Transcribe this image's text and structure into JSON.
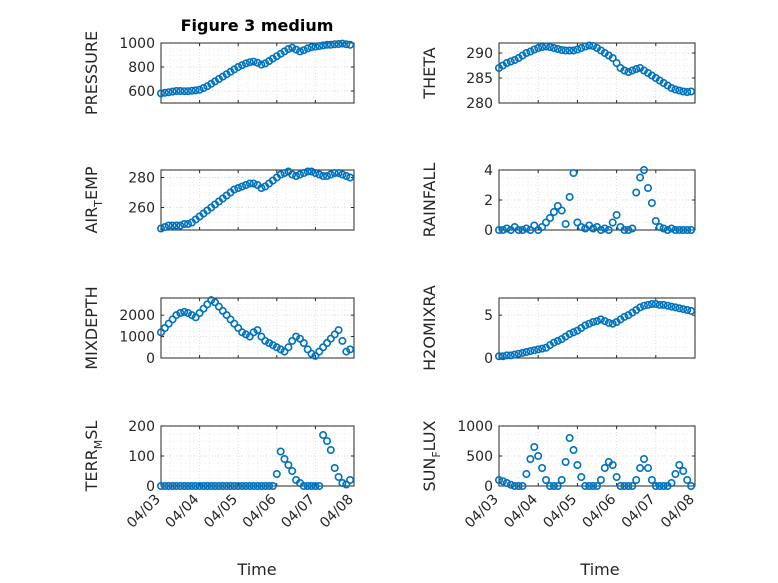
{
  "chart_data": [
    {
      "type": "scatter",
      "title": "Figure 3 medium",
      "ylabel": "PRESSURE",
      "ylabel_sub": null,
      "xlim": [
        0,
        5
      ],
      "ylim": [
        500,
        1000
      ],
      "yticks": [
        600,
        800,
        1000
      ],
      "x": [
        0,
        0.1,
        0.2,
        0.3,
        0.4,
        0.5,
        0.6,
        0.7,
        0.8,
        0.9,
        1.0,
        1.1,
        1.2,
        1.3,
        1.4,
        1.5,
        1.6,
        1.7,
        1.8,
        1.9,
        2.0,
        2.1,
        2.2,
        2.3,
        2.4,
        2.5,
        2.6,
        2.7,
        2.8,
        2.9,
        3.0,
        3.1,
        3.2,
        3.3,
        3.4,
        3.5,
        3.6,
        3.7,
        3.8,
        3.9,
        4.0,
        4.1,
        4.2,
        4.3,
        4.4,
        4.5,
        4.6,
        4.7,
        4.8,
        4.9
      ],
      "y": [
        580,
        585,
        590,
        595,
        600,
        600,
        598,
        598,
        602,
        605,
        610,
        625,
        640,
        660,
        680,
        700,
        720,
        740,
        760,
        780,
        800,
        815,
        830,
        840,
        845,
        835,
        820,
        830,
        850,
        870,
        890,
        910,
        930,
        950,
        960,
        945,
        930,
        940,
        955,
        965,
        970,
        975,
        980,
        985,
        985,
        990,
        992,
        995,
        990,
        985
      ]
    },
    {
      "type": "scatter",
      "title": "",
      "ylabel": "THETA",
      "ylabel_sub": null,
      "xlim": [
        0,
        5
      ],
      "ylim": [
        280,
        292
      ],
      "yticks": [
        280,
        285,
        290
      ],
      "x": [
        0,
        0.1,
        0.2,
        0.3,
        0.4,
        0.5,
        0.6,
        0.7,
        0.8,
        0.9,
        1.0,
        1.1,
        1.2,
        1.3,
        1.4,
        1.5,
        1.6,
        1.7,
        1.8,
        1.9,
        2.0,
        2.1,
        2.2,
        2.3,
        2.4,
        2.5,
        2.6,
        2.7,
        2.8,
        2.9,
        3.0,
        3.1,
        3.2,
        3.3,
        3.4,
        3.5,
        3.6,
        3.7,
        3.8,
        3.9,
        4.0,
        4.1,
        4.2,
        4.3,
        4.4,
        4.5,
        4.6,
        4.7,
        4.8,
        4.9
      ],
      "y": [
        287,
        287.5,
        288,
        288.3,
        288.6,
        289,
        289.5,
        290,
        290.3,
        290.7,
        291,
        291.2,
        291.3,
        291.2,
        291,
        290.8,
        290.6,
        290.5,
        290.5,
        290.5,
        290.7,
        291,
        291.3,
        291.5,
        291.4,
        291,
        290.5,
        290,
        289.5,
        289,
        288,
        287,
        286.5,
        286.2,
        286.5,
        286.8,
        287,
        286.5,
        286,
        285.5,
        285,
        284.5,
        284,
        283.5,
        283,
        282.7,
        282.5,
        282.3,
        282.2,
        282.3
      ]
    },
    {
      "type": "scatter",
      "title": "",
      "ylabel": "AIR",
      "ylabel_sub": "T",
      "ylabel_rest": "EMP",
      "xlim": [
        0,
        5
      ],
      "ylim": [
        245,
        285
      ],
      "yticks": [
        260,
        280
      ],
      "x": [
        0,
        0.1,
        0.2,
        0.3,
        0.4,
        0.5,
        0.6,
        0.7,
        0.8,
        0.9,
        1.0,
        1.1,
        1.2,
        1.3,
        1.4,
        1.5,
        1.6,
        1.7,
        1.8,
        1.9,
        2.0,
        2.1,
        2.2,
        2.3,
        2.4,
        2.5,
        2.6,
        2.7,
        2.8,
        2.9,
        3.0,
        3.1,
        3.2,
        3.3,
        3.4,
        3.5,
        3.6,
        3.7,
        3.8,
        3.9,
        4.0,
        4.1,
        4.2,
        4.3,
        4.4,
        4.5,
        4.6,
        4.7,
        4.8,
        4.9
      ],
      "y": [
        246,
        247,
        248,
        248,
        248,
        248,
        249,
        249,
        250,
        252,
        254,
        256,
        258,
        260,
        262,
        264,
        266,
        268,
        270,
        272,
        273,
        274,
        275,
        276,
        276,
        275,
        273,
        274,
        276,
        278,
        280,
        282,
        283,
        284,
        282,
        281,
        282,
        283,
        284,
        284,
        283,
        282,
        281,
        281,
        282,
        283,
        283,
        282,
        281,
        280
      ]
    },
    {
      "type": "scatter",
      "title": "",
      "ylabel": "RAINFALL",
      "ylabel_sub": null,
      "xlim": [
        0,
        5
      ],
      "ylim": [
        0,
        4
      ],
      "yticks": [
        0,
        2,
        4
      ],
      "x": [
        0,
        0.1,
        0.2,
        0.3,
        0.4,
        0.5,
        0.6,
        0.7,
        0.8,
        0.9,
        1.0,
        1.1,
        1.2,
        1.3,
        1.4,
        1.5,
        1.6,
        1.7,
        1.8,
        1.9,
        2.0,
        2.1,
        2.2,
        2.3,
        2.4,
        2.5,
        2.6,
        2.7,
        2.8,
        2.9,
        3.0,
        3.1,
        3.2,
        3.3,
        3.4,
        3.5,
        3.6,
        3.7,
        3.8,
        3.9,
        4.0,
        4.1,
        4.2,
        4.3,
        4.4,
        4.5,
        4.6,
        4.7,
        4.8,
        4.9
      ],
      "y": [
        0,
        0,
        0.1,
        0,
        0.2,
        0,
        0,
        0.1,
        0,
        0.3,
        0,
        0.2,
        0.5,
        0.8,
        1.2,
        1.6,
        1.3,
        0.4,
        2.2,
        3.8,
        0.5,
        0.2,
        0.1,
        0.3,
        0.1,
        0.2,
        0,
        0.1,
        0,
        0.5,
        1.0,
        0.2,
        0,
        0,
        0.1,
        2.5,
        3.5,
        4.0,
        2.8,
        1.8,
        0.6,
        0.2,
        0.1,
        0,
        0.1,
        0,
        0,
        0,
        0,
        0
      ]
    },
    {
      "type": "scatter",
      "title": "",
      "ylabel": "MIXDEPTH",
      "ylabel_sub": null,
      "xlim": [
        0,
        5
      ],
      "ylim": [
        0,
        2800
      ],
      "yticks": [
        0,
        1000,
        2000
      ],
      "x": [
        0,
        0.1,
        0.2,
        0.3,
        0.4,
        0.5,
        0.6,
        0.7,
        0.8,
        0.9,
        1.0,
        1.1,
        1.2,
        1.3,
        1.4,
        1.5,
        1.6,
        1.7,
        1.8,
        1.9,
        2.0,
        2.1,
        2.2,
        2.3,
        2.4,
        2.5,
        2.6,
        2.7,
        2.8,
        2.9,
        3.0,
        3.1,
        3.2,
        3.3,
        3.4,
        3.5,
        3.6,
        3.7,
        3.8,
        3.9,
        4.0,
        4.1,
        4.2,
        4.3,
        4.4,
        4.5,
        4.6,
        4.7,
        4.8,
        4.9
      ],
      "y": [
        1200,
        1400,
        1600,
        1800,
        2000,
        2100,
        2150,
        2100,
        2000,
        1900,
        2100,
        2300,
        2500,
        2700,
        2600,
        2400,
        2200,
        2000,
        1800,
        1600,
        1400,
        1200,
        1100,
        1000,
        1200,
        1300,
        1000,
        800,
        700,
        600,
        500,
        400,
        300,
        500,
        800,
        1000,
        900,
        700,
        400,
        200,
        100,
        300,
        500,
        700,
        900,
        1100,
        1300,
        800,
        300,
        400
      ]
    },
    {
      "type": "scatter",
      "title": "",
      "ylabel": "H2OMIXRA",
      "ylabel_sub": null,
      "xlim": [
        0,
        5
      ],
      "ylim": [
        0,
        7
      ],
      "yticks": [
        0,
        5
      ],
      "x": [
        0,
        0.1,
        0.2,
        0.3,
        0.4,
        0.5,
        0.6,
        0.7,
        0.8,
        0.9,
        1.0,
        1.1,
        1.2,
        1.3,
        1.4,
        1.5,
        1.6,
        1.7,
        1.8,
        1.9,
        2.0,
        2.1,
        2.2,
        2.3,
        2.4,
        2.5,
        2.6,
        2.7,
        2.8,
        2.9,
        3.0,
        3.1,
        3.2,
        3.3,
        3.4,
        3.5,
        3.6,
        3.7,
        3.8,
        3.9,
        4.0,
        4.1,
        4.2,
        4.3,
        4.4,
        4.5,
        4.6,
        4.7,
        4.8,
        4.9
      ],
      "y": [
        0.2,
        0.2,
        0.3,
        0.3,
        0.4,
        0.5,
        0.6,
        0.7,
        0.8,
        0.9,
        1.0,
        1.1,
        1.2,
        1.5,
        1.8,
        2.0,
        2.2,
        2.5,
        2.8,
        3.0,
        3.2,
        3.5,
        3.8,
        4.0,
        4.2,
        4.3,
        4.5,
        4.3,
        4.1,
        4.0,
        4.2,
        4.5,
        4.8,
        5.0,
        5.3,
        5.6,
        5.9,
        6.1,
        6.2,
        6.3,
        6.3,
        6.2,
        6.2,
        6.1,
        6.0,
        5.9,
        5.8,
        5.7,
        5.6,
        5.5
      ]
    },
    {
      "type": "scatter",
      "title": "",
      "ylabel": "TERR",
      "ylabel_sub": "M",
      "ylabel_rest": "SL",
      "xlim": [
        0,
        5
      ],
      "ylim": [
        0,
        200
      ],
      "yticks": [
        0,
        100,
        200
      ],
      "x": [
        0,
        0.1,
        0.2,
        0.3,
        0.4,
        0.5,
        0.6,
        0.7,
        0.8,
        0.9,
        1.0,
        1.1,
        1.2,
        1.3,
        1.4,
        1.5,
        1.6,
        1.7,
        1.8,
        1.9,
        2.0,
        2.1,
        2.2,
        2.3,
        2.4,
        2.5,
        2.6,
        2.7,
        2.8,
        2.9,
        3.0,
        3.1,
        3.2,
        3.3,
        3.4,
        3.5,
        3.6,
        3.7,
        3.8,
        3.9,
        4.0,
        4.1,
        4.2,
        4.3,
        4.4,
        4.5,
        4.6,
        4.7,
        4.8,
        4.9
      ],
      "y": [
        0,
        0,
        0,
        0,
        0,
        0,
        0,
        0,
        0,
        0,
        0,
        0,
        0,
        0,
        0,
        0,
        0,
        0,
        0,
        0,
        0,
        0,
        0,
        0,
        0,
        0,
        0,
        0,
        0,
        0,
        40,
        115,
        90,
        70,
        50,
        20,
        10,
        0,
        0,
        0,
        0,
        0,
        170,
        150,
        120,
        60,
        30,
        10,
        5,
        20
      ]
    },
    {
      "type": "scatter",
      "title": "",
      "ylabel": "SUN",
      "ylabel_sub": "F",
      "ylabel_rest": "LUX",
      "xlim": [
        0,
        5
      ],
      "ylim": [
        0,
        1000
      ],
      "yticks": [
        0,
        500,
        1000
      ],
      "x": [
        0,
        0.1,
        0.2,
        0.3,
        0.4,
        0.5,
        0.6,
        0.7,
        0.8,
        0.9,
        1.0,
        1.1,
        1.2,
        1.3,
        1.4,
        1.5,
        1.6,
        1.7,
        1.8,
        1.9,
        2.0,
        2.1,
        2.2,
        2.3,
        2.4,
        2.5,
        2.6,
        2.7,
        2.8,
        2.9,
        3.0,
        3.1,
        3.2,
        3.3,
        3.4,
        3.5,
        3.6,
        3.7,
        3.8,
        3.9,
        4.0,
        4.1,
        4.2,
        4.3,
        4.4,
        4.5,
        4.6,
        4.7,
        4.8,
        4.9
      ],
      "y": [
        100,
        80,
        50,
        20,
        0,
        0,
        0,
        200,
        450,
        650,
        500,
        300,
        100,
        0,
        0,
        0,
        100,
        400,
        800,
        600,
        350,
        150,
        0,
        0,
        0,
        0,
        100,
        300,
        400,
        350,
        150,
        0,
        0,
        0,
        0,
        100,
        300,
        450,
        300,
        100,
        0,
        0,
        0,
        0,
        50,
        200,
        350,
        250,
        100,
        0
      ]
    }
  ],
  "xaxis": {
    "ticklabels": [
      "04/03",
      "04/04",
      "04/05",
      "04/06",
      "04/07",
      "04/08"
    ],
    "label": "Time"
  },
  "colors": {
    "marker": "#0072BD",
    "axis": "#262626",
    "grid": "#DFDFDF"
  }
}
